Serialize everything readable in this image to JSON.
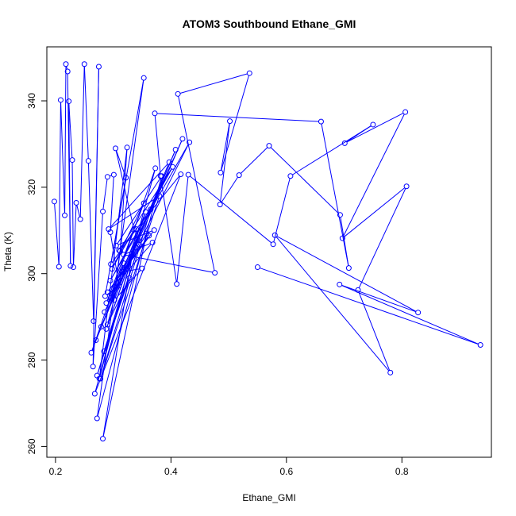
{
  "chart_data": {
    "type": "line",
    "title": "ATOM3 Southbound Ethane_GMI",
    "xlabel": "Ethane_GMI",
    "ylabel": "Theta (K)",
    "xlim": [
      0.185,
      0.955
    ],
    "ylim": [
      257.5,
      352.5
    ],
    "xticks": [
      0.2,
      0.4,
      0.6,
      0.8
    ],
    "yticks": [
      260,
      280,
      300,
      320,
      340
    ],
    "grid": false,
    "line_color": "#0000ff",
    "marker": "open-circle",
    "series": [
      {
        "x": [
          0.198,
          0.206,
          0.209,
          0.216,
          0.218,
          0.221,
          0.226,
          0.223,
          0.229,
          0.231,
          0.236,
          0.243,
          0.25,
          0.257,
          0.266,
          0.275,
          0.265,
          0.282,
          0.29,
          0.301,
          0.295,
          0.31,
          0.286,
          0.322,
          0.304,
          0.336,
          0.298,
          0.353,
          0.288,
          0.365,
          0.278,
          0.38,
          0.292,
          0.397,
          0.27,
          0.408,
          0.279,
          0.42,
          0.285,
          0.432,
          0.295,
          0.403,
          0.31,
          0.417,
          0.268,
          0.373,
          0.262,
          0.356,
          0.272,
          0.345,
          0.284,
          0.328,
          0.29,
          0.318,
          0.296,
          0.304,
          0.312,
          0.324,
          0.276,
          0.332,
          0.288,
          0.342,
          0.302,
          0.35,
          0.315,
          0.362,
          0.29,
          0.371,
          0.305,
          0.384,
          0.272,
          0.353,
          0.296,
          0.34,
          0.282,
          0.358,
          0.306,
          0.368,
          0.318,
          0.476,
          0.412,
          0.536,
          0.486,
          0.502,
          0.485,
          0.518,
          0.57,
          0.693,
          0.708,
          0.66,
          0.372,
          0.382,
          0.41,
          0.43,
          0.577,
          0.607,
          0.75,
          0.701,
          0.806,
          0.697,
          0.808,
          0.724,
          0.78,
          0.58,
          0.828,
          0.692,
          0.936,
          0.55
        ],
        "y": [
          316.7,
          301.6,
          340.2,
          313.5,
          348.5,
          346.8,
          301.8,
          339.9,
          326.3,
          301.5,
          316.4,
          312.6,
          348.5,
          326.1,
          289.0,
          347.9,
          278.5,
          314.4,
          322.4,
          322.9,
          309.6,
          297.2,
          294.8,
          322.2,
          329.0,
          310.2,
          301.1,
          316.3,
          293.2,
          314.9,
          275.7,
          318.0,
          310.3,
          325.8,
          284.6,
          328.7,
          287.7,
          331.2,
          291.1,
          330.4,
          298.4,
          324.7,
          305.4,
          323.0,
          272.2,
          324.4,
          281.7,
          314.3,
          276.4,
          306.7,
          282.0,
          299.0,
          288.2,
          302.4,
          294.4,
          297.0,
          305.2,
          329.2,
          275.7,
          304.0,
          287.2,
          307.9,
          293.9,
          301.2,
          300.4,
          308.8,
          295.7,
          310.1,
          306.5,
          322.6,
          266.5,
          345.3,
          302.2,
          310.3,
          261.8,
          309.3,
          297.8,
          307.2,
          304.4,
          300.2,
          341.6,
          346.4,
          323.4,
          335.3,
          316.0,
          322.8,
          329.6,
          313.6,
          301.3,
          335.2,
          337.1,
          322.6,
          297.6,
          322.9,
          306.8,
          322.6,
          334.5,
          330.2,
          337.4,
          308.2,
          320.2,
          296.2,
          277.1,
          308.9,
          291.0,
          297.5,
          283.5,
          301.5
        ]
      }
    ]
  }
}
